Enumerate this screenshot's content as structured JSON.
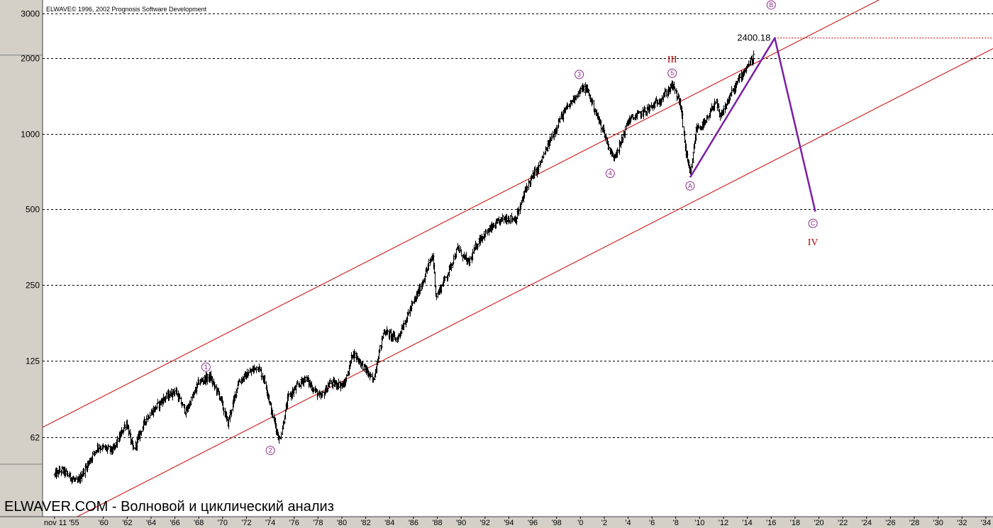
{
  "copyright": "ELWAVE© 1996, 2002 Prognosis Software Development",
  "footer_caption": "ELWAVER.COM - Волновой и циклический анализ",
  "colors": {
    "background": "#ffffff",
    "panel": "#d4d0c8",
    "channel": "#cc0000",
    "projection": "#7a1fa2",
    "wave_marker": "#8b2a8b",
    "roman_numeral": "#b20000",
    "price": "#000000"
  },
  "chart_data": {
    "type": "candlestick",
    "y_scale": "log",
    "ylim": [
      30,
      3400
    ],
    "xlim": [
      1954.9,
      2034.6
    ],
    "y_ticks": [
      {
        "value": 3000,
        "label": "3000"
      },
      {
        "value": 2000,
        "label": "2000"
      },
      {
        "value": 1000,
        "label": "1000"
      },
      {
        "value": 500,
        "label": "500"
      },
      {
        "value": 250,
        "label": "250"
      },
      {
        "value": 125,
        "label": "125"
      },
      {
        "value": 62,
        "label": "62"
      }
    ],
    "x_ticks": [
      {
        "value": 1955.9,
        "label": "nov 11 '55"
      },
      {
        "value": 1960,
        "label": "'60"
      },
      {
        "value": 1962,
        "label": "'62"
      },
      {
        "value": 1964,
        "label": "'64"
      },
      {
        "value": 1966,
        "label": "'66"
      },
      {
        "value": 1968,
        "label": "'68"
      },
      {
        "value": 1970,
        "label": "'70"
      },
      {
        "value": 1972,
        "label": "'72"
      },
      {
        "value": 1974,
        "label": "'74"
      },
      {
        "value": 1976,
        "label": "'76"
      },
      {
        "value": 1978,
        "label": "'78"
      },
      {
        "value": 1980,
        "label": "'80"
      },
      {
        "value": 1982,
        "label": "'82"
      },
      {
        "value": 1984,
        "label": "'84"
      },
      {
        "value": 1986,
        "label": "'86"
      },
      {
        "value": 1988,
        "label": "'88"
      },
      {
        "value": 1990,
        "label": "'90"
      },
      {
        "value": 1992,
        "label": "'92"
      },
      {
        "value": 1994,
        "label": "'94"
      },
      {
        "value": 1996,
        "label": "'96"
      },
      {
        "value": 1998,
        "label": "'98"
      },
      {
        "value": 2000,
        "label": "'0"
      },
      {
        "value": 2002,
        "label": "'2"
      },
      {
        "value": 2004,
        "label": "'4"
      },
      {
        "value": 2006,
        "label": "'6"
      },
      {
        "value": 2008,
        "label": "'8"
      },
      {
        "value": 2010,
        "label": "'10"
      },
      {
        "value": 2012,
        "label": "'12"
      },
      {
        "value": 2014,
        "label": "'14"
      },
      {
        "value": 2016,
        "label": "'16"
      },
      {
        "value": 2018,
        "label": "'18"
      },
      {
        "value": 2020,
        "label": "'20"
      },
      {
        "value": 2022,
        "label": "'22"
      },
      {
        "value": 2024,
        "label": "'24"
      },
      {
        "value": 2026,
        "label": "'26"
      },
      {
        "value": 2028,
        "label": "'28"
      },
      {
        "value": 2030,
        "label": "'30"
      },
      {
        "value": 2032,
        "label": "'32"
      },
      {
        "value": 2034,
        "label": "'34"
      }
    ],
    "price_anchors": [
      [
        1955.9,
        44
      ],
      [
        1956.5,
        46
      ],
      [
        1957.8,
        41
      ],
      [
        1958.5,
        47
      ],
      [
        1959.5,
        57
      ],
      [
        1960.8,
        55
      ],
      [
        1961.9,
        71
      ],
      [
        1962.5,
        55
      ],
      [
        1963.5,
        73
      ],
      [
        1965.0,
        88
      ],
      [
        1966.0,
        95
      ],
      [
        1966.9,
        78
      ],
      [
        1968.0,
        103
      ],
      [
        1968.9,
        108
      ],
      [
        1969.8,
        89
      ],
      [
        1970.4,
        70
      ],
      [
        1971.3,
        103
      ],
      [
        1972.9,
        119
      ],
      [
        1973.5,
        105
      ],
      [
        1974.1,
        78
      ],
      [
        1974.75,
        60
      ],
      [
        1975.5,
        90
      ],
      [
        1976.9,
        107
      ],
      [
        1977.5,
        98
      ],
      [
        1978.2,
        89
      ],
      [
        1979.0,
        102
      ],
      [
        1980.2,
        100
      ],
      [
        1980.9,
        135
      ],
      [
        1981.6,
        122
      ],
      [
        1982.6,
        104
      ],
      [
        1983.5,
        165
      ],
      [
        1984.6,
        152
      ],
      [
        1985.5,
        190
      ],
      [
        1986.5,
        240
      ],
      [
        1987.6,
        330
      ],
      [
        1987.9,
        225
      ],
      [
        1988.8,
        275
      ],
      [
        1989.7,
        350
      ],
      [
        1990.6,
        305
      ],
      [
        1991.5,
        380
      ],
      [
        1992.5,
        420
      ],
      [
        1993.5,
        460
      ],
      [
        1994.6,
        460
      ],
      [
        1995.5,
        620
      ],
      [
        1996.5,
        740
      ],
      [
        1997.5,
        950
      ],
      [
        1998.3,
        1150
      ],
      [
        1998.8,
        1250
      ],
      [
        1999.5,
        1400
      ],
      [
        2000.2,
        1520
      ],
      [
        2000.6,
        1480
      ],
      [
        2001.3,
        1200
      ],
      [
        2001.8,
        1060
      ],
      [
        2002.7,
        800
      ],
      [
        2003.3,
        900
      ],
      [
        2004.0,
        1130
      ],
      [
        2005.0,
        1200
      ],
      [
        2006.0,
        1280
      ],
      [
        2007.0,
        1420
      ],
      [
        2007.7,
        1560
      ],
      [
        2008.4,
        1300
      ],
      [
        2008.8,
        850
      ],
      [
        2009.2,
        680
      ],
      [
        2009.7,
        1050
      ],
      [
        2010.5,
        1100
      ],
      [
        2011.3,
        1350
      ],
      [
        2011.7,
        1150
      ],
      [
        2012.5,
        1400
      ],
      [
        2013.5,
        1720
      ],
      [
        2014.5,
        2020
      ]
    ],
    "annotations": [
      {
        "label": "1",
        "x": 1968.6,
        "y": 118,
        "type": "circle"
      },
      {
        "label": "2",
        "x": 1974.0,
        "y": 55,
        "type": "circle"
      },
      {
        "label": "3",
        "x": 1999.9,
        "y": 1720,
        "type": "circle"
      },
      {
        "label": "4",
        "x": 2002.5,
        "y": 695,
        "type": "circle"
      },
      {
        "label": "5",
        "x": 2007.7,
        "y": 1740,
        "type": "circle"
      },
      {
        "label": "A",
        "x": 2009.2,
        "y": 620,
        "type": "circle"
      },
      {
        "label": "B",
        "x": 2016.0,
        "y": 3250,
        "type": "circle"
      },
      {
        "label": "C",
        "x": 2019.5,
        "y": 440,
        "type": "circle"
      },
      {
        "label": "III",
        "x": 2007.7,
        "y": 1920,
        "type": "roman"
      },
      {
        "label": "IV",
        "x": 2019.5,
        "y": 360,
        "type": "roman"
      }
    ],
    "price_level": {
      "label": "2400.18",
      "value": 2400.18,
      "x_start": 2016.3
    },
    "projection_path": [
      [
        2009.2,
        670
      ],
      [
        2016.3,
        2400.18
      ],
      [
        2019.7,
        490
      ]
    ],
    "channel_upper": [
      [
        1954.9,
        68
      ],
      [
        2034.6,
        5800
      ]
    ],
    "channel_lower": [
      [
        1954.9,
        25.5
      ],
      [
        2034.6,
        2180
      ]
    ]
  }
}
